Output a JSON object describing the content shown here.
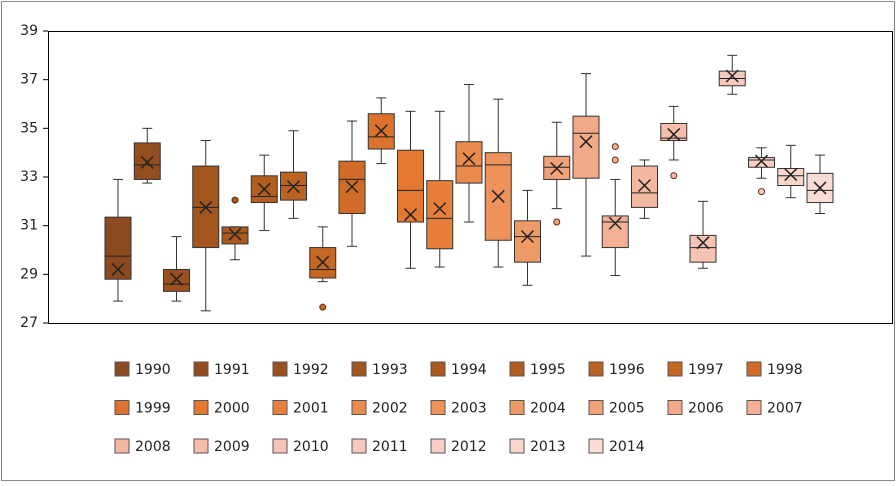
{
  "chart_data": {
    "type": "box",
    "ylim": [
      27,
      39
    ],
    "yticks": [
      27,
      29,
      31,
      33,
      35,
      37,
      39
    ],
    "grid": false,
    "series": [
      {
        "name": "1990",
        "color": "#8c4a20",
        "min": 27.9,
        "q1": 28.8,
        "median": 29.75,
        "q3": 31.35,
        "max": 32.9,
        "mean": 29.2,
        "outliers": []
      },
      {
        "name": "1991",
        "color": "#934d1f",
        "min": 32.75,
        "q1": 32.9,
        "median": 33.5,
        "q3": 34.4,
        "max": 35.0,
        "mean": 33.6,
        "outliers": []
      },
      {
        "name": "1992",
        "color": "#9a511f",
        "min": 27.9,
        "q1": 28.3,
        "median": 28.6,
        "q3": 29.2,
        "max": 30.55,
        "mean": 28.8,
        "outliers": []
      },
      {
        "name": "1993",
        "color": "#a3551f",
        "min": 27.5,
        "q1": 30.1,
        "median": 31.75,
        "q3": 33.45,
        "max": 34.5,
        "mean": 31.75,
        "outliers": []
      },
      {
        "name": "1994",
        "color": "#ab591f",
        "min": 29.6,
        "q1": 30.25,
        "median": 30.7,
        "q3": 30.95,
        "max": 30.95,
        "mean": 30.65,
        "outliers": [
          32.05
        ]
      },
      {
        "name": "1995",
        "color": "#b35d20",
        "min": 30.8,
        "q1": 31.95,
        "median": 32.2,
        "q3": 33.05,
        "max": 33.9,
        "mean": 32.5,
        "outliers": []
      },
      {
        "name": "1996",
        "color": "#bc6222",
        "min": 31.3,
        "q1": 32.05,
        "median": 32.65,
        "q3": 33.2,
        "max": 34.9,
        "mean": 32.6,
        "outliers": []
      },
      {
        "name": "1997",
        "color": "#c66724",
        "min": 28.7,
        "q1": 28.85,
        "median": 29.2,
        "q3": 30.1,
        "max": 30.95,
        "mean": 29.5,
        "outliers": [
          27.65
        ]
      },
      {
        "name": "1998",
        "color": "#d06c27",
        "min": 30.15,
        "q1": 31.5,
        "median": 32.9,
        "q3": 33.65,
        "max": 35.3,
        "mean": 32.6,
        "outliers": []
      },
      {
        "name": "1999",
        "color": "#dc722b",
        "min": 33.55,
        "q1": 34.15,
        "median": 34.65,
        "q3": 35.6,
        "max": 36.25,
        "mean": 34.9,
        "outliers": []
      },
      {
        "name": "2000",
        "color": "#e5782f",
        "min": 29.25,
        "q1": 31.15,
        "median": 32.45,
        "q3": 34.1,
        "max": 35.7,
        "mean": 31.45,
        "outliers": []
      },
      {
        "name": "2001",
        "color": "#e77f3b",
        "min": 29.3,
        "q1": 30.05,
        "median": 31.3,
        "q3": 32.85,
        "max": 35.7,
        "mean": 31.7,
        "outliers": []
      },
      {
        "name": "2002",
        "color": "#ea8a4c",
        "min": 31.15,
        "q1": 32.75,
        "median": 33.45,
        "q3": 34.45,
        "max": 36.8,
        "mean": 33.75,
        "outliers": []
      },
      {
        "name": "2003",
        "color": "#ec925a",
        "min": 29.3,
        "q1": 30.4,
        "median": 33.5,
        "q3": 34.0,
        "max": 36.2,
        "mean": 32.2,
        "outliers": []
      },
      {
        "name": "2004",
        "color": "#ee9a67",
        "min": 28.55,
        "q1": 29.5,
        "median": 30.55,
        "q3": 31.2,
        "max": 32.45,
        "mean": 30.55,
        "outliers": []
      },
      {
        "name": "2005",
        "color": "#f0a27a",
        "min": 31.7,
        "q1": 32.9,
        "median": 33.4,
        "q3": 33.85,
        "max": 35.25,
        "mean": 33.35,
        "outliers": [
          31.15
        ]
      },
      {
        "name": "2006",
        "color": "#f1a988",
        "min": 29.75,
        "q1": 32.95,
        "median": 34.8,
        "q3": 35.5,
        "max": 37.25,
        "mean": 34.45,
        "outliers": []
      },
      {
        "name": "2007",
        "color": "#f3b094",
        "min": 28.95,
        "q1": 30.1,
        "median": 31.15,
        "q3": 31.4,
        "max": 32.9,
        "mean": 31.1,
        "outliers": [
          34.25,
          33.7
        ]
      },
      {
        "name": "2008",
        "color": "#f4b79f",
        "min": 31.3,
        "q1": 31.75,
        "median": 32.35,
        "q3": 33.45,
        "max": 33.7,
        "mean": 32.65,
        "outliers": []
      },
      {
        "name": "2009",
        "color": "#f5bdaa",
        "min": 33.7,
        "q1": 34.5,
        "median": 34.6,
        "q3": 35.2,
        "max": 35.9,
        "mean": 34.75,
        "outliers": [
          33.05
        ]
      },
      {
        "name": "2010",
        "color": "#f6c3b4",
        "min": 29.25,
        "q1": 29.5,
        "median": 30.1,
        "q3": 30.6,
        "max": 32.0,
        "mean": 30.3,
        "outliers": []
      },
      {
        "name": "2011",
        "color": "#f7c9bc",
        "min": 36.4,
        "q1": 36.75,
        "median": 37.05,
        "q3": 37.35,
        "max": 38.0,
        "mean": 37.15,
        "outliers": []
      },
      {
        "name": "2012",
        "color": "#f8cfc4",
        "min": 32.95,
        "q1": 33.4,
        "median": 33.7,
        "q3": 33.8,
        "max": 34.2,
        "mean": 33.65,
        "outliers": [
          32.4
        ]
      },
      {
        "name": "2013",
        "color": "#f9d5cc",
        "min": 32.15,
        "q1": 32.65,
        "median": 33.05,
        "q3": 33.35,
        "max": 34.3,
        "mean": 33.1,
        "outliers": []
      },
      {
        "name": "2014",
        "color": "#fadcd4",
        "min": 31.5,
        "q1": 31.95,
        "median": 32.45,
        "q3": 33.15,
        "max": 33.9,
        "mean": 32.55,
        "outliers": []
      }
    ]
  }
}
